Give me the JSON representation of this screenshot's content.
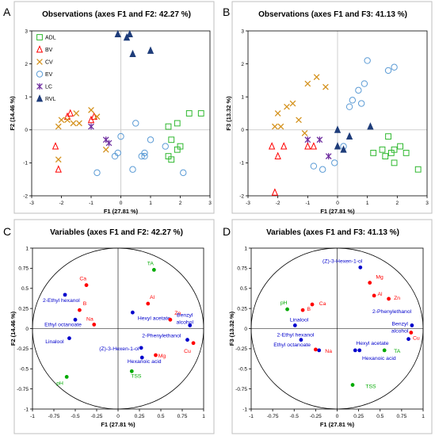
{
  "panels": [
    {
      "letter": "A",
      "title": "Observations (axes F1 and F2: 42.27 %)"
    },
    {
      "letter": "B",
      "title": "Observations (axes F1 and F3: 41.13 %)"
    },
    {
      "letter": "C",
      "title": "Variables (axes F1 and F2: 42.27 %)"
    },
    {
      "letter": "D",
      "title": "Variables (axes F1 and F3: 41.13 %)"
    }
  ],
  "colors": {
    "red": "#ff0000",
    "blue": "#0000cc",
    "green": "#00aa00",
    "circle_light_blue": "#5b9bd5",
    "square_green": "#2eb82e",
    "cross_orange": "#d4921e",
    "star_purple": "#7030a0",
    "triangle_navy": "#1f3d7a",
    "grid": "#d9d9d9"
  },
  "chart_data": [
    {
      "type": "scatter",
      "title": "Observations (axes F1 and F2: 42.27 %)",
      "xlabel": "F1 (27.81 %)",
      "ylabel": "F2 (14.46 %)",
      "xlim": [
        -3,
        3
      ],
      "ylim": [
        -2,
        3
      ],
      "xticks": [
        -3,
        -2,
        -1,
        0,
        1,
        2,
        3
      ],
      "yticks": [
        -2,
        -1,
        0,
        1,
        2,
        3
      ],
      "grid": true,
      "legend": "left",
      "series": [
        {
          "name": "ADL",
          "marker": "square",
          "color": "#2eb82e",
          "points": [
            [
              1.6,
              0.1
            ],
            [
              1.7,
              -0.3
            ],
            [
              1.6,
              -0.8
            ],
            [
              1.7,
              -0.9
            ],
            [
              1.9,
              -0.6
            ],
            [
              2.0,
              -0.5
            ],
            [
              2.3,
              0.5
            ],
            [
              2.7,
              0.5
            ],
            [
              1.9,
              0.2
            ]
          ]
        },
        {
          "name": "BV",
          "marker": "triangle-open",
          "color": "#ff0000",
          "points": [
            [
              -1.7,
              0.5
            ],
            [
              -1.8,
              0.4
            ],
            [
              -2.2,
              -0.5
            ],
            [
              -2.1,
              -1.2
            ],
            [
              -0.9,
              0.4
            ],
            [
              -1.0,
              0.3
            ]
          ]
        },
        {
          "name": "CV",
          "marker": "x",
          "color": "#d4921e",
          "points": [
            [
              -2.1,
              0.1
            ],
            [
              -2.0,
              0.3
            ],
            [
              -1.8,
              0.3
            ],
            [
              -1.6,
              0.2
            ],
            [
              -1.5,
              0.5
            ],
            [
              -1.4,
              0.2
            ],
            [
              -1.0,
              0.6
            ],
            [
              -0.8,
              0.4
            ],
            [
              -2.1,
              -0.9
            ],
            [
              -0.5,
              -0.6
            ]
          ]
        },
        {
          "name": "EV",
          "marker": "circle",
          "color": "#5b9bd5",
          "points": [
            [
              -0.2,
              -0.8
            ],
            [
              -0.1,
              -0.7
            ],
            [
              0.5,
              0.2
            ],
            [
              0.0,
              -0.2
            ],
            [
              0.7,
              -0.8
            ],
            [
              0.8,
              -0.7
            ],
            [
              1.0,
              -0.3
            ],
            [
              1.5,
              -0.5
            ],
            [
              2.1,
              -1.3
            ],
            [
              0.8,
              -0.8
            ],
            [
              -0.8,
              -1.3
            ],
            [
              0.4,
              -1.2
            ]
          ]
        },
        {
          "name": "LC",
          "marker": "star",
          "color": "#7030a0",
          "points": [
            [
              -1.0,
              0.1
            ],
            [
              -0.5,
              -0.3
            ],
            [
              -0.4,
              -0.4
            ]
          ]
        },
        {
          "name": "RVL",
          "marker": "triangle",
          "color": "#1f3d7a",
          "points": [
            [
              -0.1,
              2.9
            ],
            [
              0.2,
              2.8
            ],
            [
              0.4,
              2.3
            ],
            [
              1.0,
              2.4
            ],
            [
              0.3,
              2.9
            ]
          ]
        }
      ]
    },
    {
      "type": "scatter",
      "title": "Observations (axes F1 and F3: 41.13 %)",
      "xlabel": "F1 (27.81 %)",
      "ylabel": "F3 (13.32 %)",
      "xlim": [
        -3,
        3
      ],
      "ylim": [
        -2,
        3
      ],
      "xticks": [
        -3,
        -2,
        -1,
        0,
        1,
        2,
        3
      ],
      "yticks": [
        -2,
        -1,
        0,
        1,
        2,
        3
      ],
      "grid": true,
      "series": [
        {
          "name": "ADL",
          "marker": "square",
          "color": "#2eb82e",
          "points": [
            [
              1.2,
              -0.7
            ],
            [
              1.5,
              -0.6
            ],
            [
              1.6,
              -0.8
            ],
            [
              1.7,
              -0.2
            ],
            [
              1.8,
              -0.7
            ],
            [
              1.9,
              -0.6
            ],
            [
              2.1,
              -0.5
            ],
            [
              2.3,
              -0.7
            ],
            [
              2.7,
              -1.2
            ],
            [
              1.9,
              -1.0
            ]
          ]
        },
        {
          "name": "BV",
          "marker": "triangle-open",
          "color": "#ff0000",
          "points": [
            [
              -2.2,
              -0.5
            ],
            [
              -1.8,
              -0.5
            ],
            [
              -2.0,
              -0.8
            ],
            [
              -1.0,
              -0.5
            ],
            [
              -0.8,
              -0.5
            ],
            [
              -2.1,
              -1.9
            ]
          ]
        },
        {
          "name": "CV",
          "marker": "x",
          "color": "#d4921e",
          "points": [
            [
              -2.1,
              0.1
            ],
            [
              -2.0,
              0.5
            ],
            [
              -1.7,
              0.7
            ],
            [
              -1.5,
              0.8
            ],
            [
              -1.3,
              0.3
            ],
            [
              -1.0,
              1.4
            ],
            [
              -0.7,
              1.6
            ],
            [
              -0.4,
              1.3
            ],
            [
              -1.9,
              0.1
            ],
            [
              -1.1,
              -0.1
            ]
          ]
        },
        {
          "name": "EV",
          "marker": "circle",
          "color": "#5b9bd5",
          "points": [
            [
              0.4,
              0.7
            ],
            [
              0.5,
              0.9
            ],
            [
              0.7,
              1.2
            ],
            [
              0.9,
              1.4
            ],
            [
              1.0,
              2.1
            ],
            [
              1.7,
              1.8
            ],
            [
              1.9,
              1.9
            ],
            [
              0.8,
              0.8
            ],
            [
              0.2,
              -0.5
            ],
            [
              -0.1,
              -1.0
            ],
            [
              -0.8,
              -1.1
            ],
            [
              -0.5,
              -1.2
            ]
          ]
        },
        {
          "name": "LC",
          "marker": "star",
          "color": "#7030a0",
          "points": [
            [
              -1.0,
              -0.3
            ],
            [
              -0.6,
              -0.3
            ],
            [
              -0.3,
              -0.8
            ]
          ]
        },
        {
          "name": "RVL",
          "marker": "triangle",
          "color": "#1f3d7a",
          "points": [
            [
              0.0,
              0.0
            ],
            [
              0.2,
              -0.6
            ],
            [
              0.4,
              -0.2
            ],
            [
              1.1,
              0.1
            ],
            [
              0.0,
              -0.5
            ]
          ]
        }
      ]
    },
    {
      "type": "scatter",
      "title": "Variables (axes F1 and F2: 42.27 %)",
      "xlabel": "F1 (27.81 %)",
      "ylabel": "F2 (14.46 %)",
      "xlim": [
        -1,
        1
      ],
      "ylim": [
        -1,
        1
      ],
      "xticks": [
        -1,
        -0.75,
        -0.5,
        -0.25,
        0,
        0.25,
        0.5,
        0.75,
        1
      ],
      "yticks": [
        -1,
        -0.75,
        -0.5,
        -0.25,
        0,
        0.25,
        0.5,
        0.75,
        1
      ],
      "grid": false,
      "circle": true,
      "points": [
        {
          "label": "TA",
          "x": 0.42,
          "y": 0.73,
          "color": "#00aa00",
          "lx": 0.34,
          "ly": 0.79
        },
        {
          "label": "Ca",
          "x": -0.37,
          "y": 0.54,
          "color": "#ff0000",
          "lx": -0.45,
          "ly": 0.6
        },
        {
          "label": "2-Ethyl hexanol",
          "x": -0.62,
          "y": 0.42,
          "color": "#0000cc",
          "lx": -0.88,
          "ly": 0.33
        },
        {
          "label": "B",
          "x": -0.45,
          "y": 0.23,
          "color": "#ff0000",
          "lx": -0.41,
          "ly": 0.29
        },
        {
          "label": "Ethyl octanoate",
          "x": -0.5,
          "y": 0.11,
          "color": "#0000cc",
          "lx": -0.86,
          "ly": 0.03
        },
        {
          "label": "Na",
          "x": -0.28,
          "y": 0.05,
          "color": "#ff0000",
          "lx": -0.37,
          "ly": 0.1
        },
        {
          "label": "Al",
          "x": 0.35,
          "y": 0.31,
          "color": "#ff0000",
          "lx": 0.37,
          "ly": 0.37
        },
        {
          "label": "Hexyl acetate",
          "x": 0.17,
          "y": 0.2,
          "color": "#0000cc",
          "lx": 0.23,
          "ly": 0.11
        },
        {
          "label": "Zn",
          "x": 0.61,
          "y": 0.11,
          "color": "#ff0000",
          "lx": 0.66,
          "ly": 0.17
        },
        {
          "label": "Benzyl alcohol",
          "x": 0.84,
          "y": 0.04,
          "color": "#0000cc",
          "lx": 0.78,
          "ly": 0.15
        },
        {
          "label": "Linalool",
          "x": -0.57,
          "y": -0.12,
          "color": "#0000cc",
          "lx": -0.85,
          "ly": -0.18
        },
        {
          "label": "2-Phenylethanol",
          "x": 0.81,
          "y": -0.14,
          "color": "#0000cc",
          "lx": 0.28,
          "ly": -0.11
        },
        {
          "label": "Cu",
          "x": 0.88,
          "y": -0.18,
          "color": "#ff0000",
          "lx": 0.77,
          "ly": -0.3
        },
        {
          "label": "(Z)-3-Hexen-1-ol",
          "x": 0.27,
          "y": -0.24,
          "color": "#0000cc",
          "lx": -0.22,
          "ly": -0.27
        },
        {
          "label": "Mg",
          "x": 0.44,
          "y": -0.33,
          "color": "#ff0000",
          "lx": 0.47,
          "ly": -0.36
        },
        {
          "label": "Hexanoic acid",
          "x": 0.28,
          "y": -0.36,
          "color": "#0000cc",
          "lx": 0.11,
          "ly": -0.43
        },
        {
          "label": "TSS",
          "x": 0.16,
          "y": -0.53,
          "color": "#00aa00",
          "lx": 0.15,
          "ly": -0.61
        },
        {
          "label": "pH",
          "x": -0.6,
          "y": -0.6,
          "color": "#00aa00",
          "lx": -0.72,
          "ly": -0.7
        }
      ]
    },
    {
      "type": "scatter",
      "title": "Variables (axes F1 and F3: 41.13 %)",
      "xlabel": "F1 (27.81 %)",
      "ylabel": "F3 (13.32 %)",
      "xlim": [
        -1,
        1
      ],
      "ylim": [
        -1,
        1
      ],
      "xticks": [
        -1,
        -0.75,
        -0.5,
        -0.25,
        0,
        0.25,
        0.5,
        0.75,
        1
      ],
      "yticks": [
        -1,
        -0.75,
        -0.5,
        -0.25,
        0,
        0.25,
        0.5,
        0.75,
        1
      ],
      "grid": false,
      "circle": true,
      "points": [
        {
          "label": "(Z)-3-Hexen-1-ol",
          "x": 0.27,
          "y": 0.76,
          "color": "#0000cc",
          "lx": -0.17,
          "ly": 0.82
        },
        {
          "label": "Mg",
          "x": 0.38,
          "y": 0.57,
          "color": "#ff0000",
          "lx": 0.45,
          "ly": 0.62
        },
        {
          "label": "Al",
          "x": 0.43,
          "y": 0.41,
          "color": "#ff0000",
          "lx": 0.47,
          "ly": 0.41
        },
        {
          "label": "Zn",
          "x": 0.6,
          "y": 0.37,
          "color": "#ff0000",
          "lx": 0.66,
          "ly": 0.36
        },
        {
          "label": "pH",
          "x": -0.58,
          "y": 0.24,
          "color": "#00aa00",
          "lx": -0.66,
          "ly": 0.3
        },
        {
          "label": "B",
          "x": -0.4,
          "y": 0.23,
          "color": "#ff0000",
          "lx": -0.35,
          "ly": 0.22
        },
        {
          "label": "Ca",
          "x": -0.29,
          "y": 0.3,
          "color": "#ff0000",
          "lx": -0.21,
          "ly": 0.29
        },
        {
          "label": "2-Phenylethanol",
          "x": 0.87,
          "y": 0.04,
          "color": "#0000cc",
          "lx": 0.41,
          "ly": 0.19
        },
        {
          "label": "Linalool",
          "x": -0.49,
          "y": 0.04,
          "color": "#0000cc",
          "lx": -0.55,
          "ly": 0.09
        },
        {
          "label": "Benzyl alcohol",
          "x": 0.83,
          "y": -0.13,
          "color": "#0000cc",
          "lx": 0.73,
          "ly": 0.04
        },
        {
          "label": "Cu",
          "x": 0.86,
          "y": -0.05,
          "color": "#ff0000",
          "lx": 0.88,
          "ly": -0.14
        },
        {
          "label": "2-Ethyl hexanol",
          "x": -0.42,
          "y": -0.14,
          "color": "#0000cc",
          "lx": -0.7,
          "ly": -0.1
        },
        {
          "label": "Ethyl octanoate",
          "x": -0.21,
          "y": -0.27,
          "color": "#0000cc",
          "lx": -0.74,
          "ly": -0.22
        },
        {
          "label": "Na",
          "x": -0.25,
          "y": -0.26,
          "color": "#ff0000",
          "lx": -0.14,
          "ly": -0.3
        },
        {
          "label": "Hexyl acetate",
          "x": 0.26,
          "y": -0.27,
          "color": "#0000cc",
          "lx": 0.22,
          "ly": -0.2
        },
        {
          "label": "TA",
          "x": 0.55,
          "y": -0.27,
          "color": "#00aa00",
          "lx": 0.66,
          "ly": -0.3
        },
        {
          "label": "Hexanoic acid",
          "x": 0.21,
          "y": -0.27,
          "color": "#0000cc",
          "lx": 0.29,
          "ly": -0.39
        },
        {
          "label": "TSS",
          "x": 0.18,
          "y": -0.7,
          "color": "#00aa00",
          "lx": 0.33,
          "ly": -0.74
        }
      ]
    }
  ]
}
